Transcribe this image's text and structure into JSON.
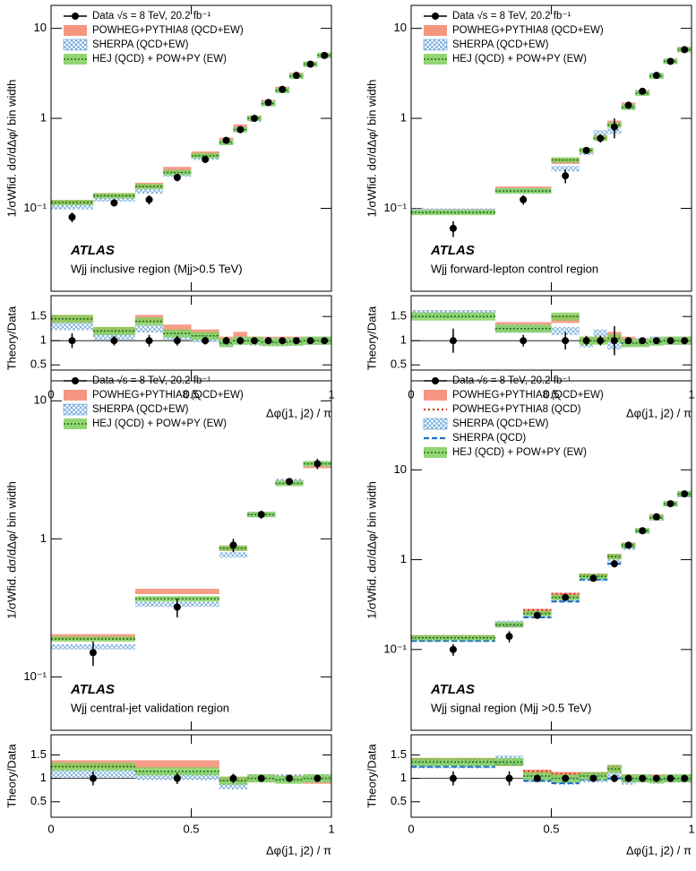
{
  "chart_data": [
    {
      "type": "histogram",
      "label": "ATLAS",
      "region": "Wjj inclusive region (Mjj>0.5 TeV)",
      "ylabel": "1/σWfid. dσ/dΔφ/ bin width",
      "ratio_ylabel": "Theory/Data",
      "xlabel": "Δφ(j1, j2) / π",
      "bins": [
        0,
        0.15,
        0.3,
        0.4,
        0.5,
        0.6,
        0.65,
        0.7,
        0.75,
        0.8,
        0.85,
        0.9,
        0.95,
        1
      ],
      "xlim": [
        0,
        1
      ],
      "xticks": [
        0,
        0.5,
        1
      ],
      "log_y": true,
      "ylim": [
        0.012,
        18
      ],
      "yticks": [
        {
          "value": 0.1,
          "label": "10⁻¹"
        },
        1,
        10
      ],
      "ratio": {
        "ylim": [
          0.17,
          1.93
        ],
        "yticks": [
          0.5,
          1,
          1.5
        ],
        "reference": 1
      },
      "series": [
        {
          "name": "Data √s = 8 TeV, 20.2 fb⁻¹",
          "style": "points",
          "color": "#000000",
          "values": [
            0.08,
            0.115,
            0.125,
            0.22,
            0.35,
            0.57,
            0.75,
            1.0,
            1.5,
            2.1,
            3.0,
            4.0,
            5.0
          ],
          "errors": [
            0.01,
            0.01,
            0.015,
            0.02,
            0.03,
            0.04,
            0.05,
            0.06,
            0.08,
            0.1,
            0.15,
            0.2,
            0.25
          ],
          "ratio_values": [
            1,
            1,
            1,
            1,
            1,
            1,
            1,
            1,
            1,
            1,
            1,
            1,
            1
          ],
          "ratio_errors": [
            0.15,
            0.1,
            0.12,
            0.1,
            0.08,
            0.08,
            0.08,
            0.06,
            0.05,
            0.05,
            0.05,
            0.05,
            0.05
          ]
        },
        {
          "name": "POWHEG+PYTHIA8 (QCD+EW)",
          "style": "band",
          "color": "#f4846a",
          "values": [
            0.116,
            0.138,
            0.18,
            0.27,
            0.4,
            0.57,
            0.8,
            1.0,
            1.5,
            2.1,
            3.0,
            4.0,
            5.0
          ],
          "ratio_values": [
            1.45,
            1.2,
            1.45,
            1.25,
            1.15,
            1.0,
            1.1,
            1.0,
            1.0,
            1.0,
            1.0,
            1.0,
            1.0
          ]
        },
        {
          "name": "SHERPA (QCD+EW)",
          "style": "hatch",
          "color": "#5b9bd5",
          "values": [
            0.104,
            0.127,
            0.156,
            0.24,
            0.37,
            0.54,
            0.75,
            0.98,
            1.47,
            2.04,
            2.94,
            4.0,
            5.0
          ],
          "ratio_values": [
            1.3,
            1.1,
            1.25,
            1.1,
            1.05,
            0.95,
            1.0,
            0.98,
            0.98,
            0.97,
            0.98,
            1.0,
            1.0
          ]
        },
        {
          "name": "HEJ (QCD) + POW+PY (EW)",
          "style": "band-dotted",
          "color": "#7fcf5a",
          "values": [
            0.116,
            0.138,
            0.175,
            0.25,
            0.385,
            0.54,
            0.75,
            1.0,
            1.46,
            2.04,
            2.94,
            4.0,
            5.0
          ],
          "ratio_values": [
            1.45,
            1.2,
            1.4,
            1.15,
            1.1,
            0.95,
            1.0,
            1.0,
            0.97,
            0.97,
            0.98,
            1.0,
            1.0
          ]
        }
      ]
    },
    {
      "type": "histogram",
      "label": "ATLAS",
      "region": "Wjj forward-lepton control region",
      "ylabel": "1/σWfid. dσ/dΔφ/ bin width",
      "ratio_ylabel": "Theory/Data",
      "xlabel": "Δφ(j1, j2) / π",
      "bins": [
        0,
        0.3,
        0.5,
        0.6,
        0.65,
        0.7,
        0.75,
        0.8,
        0.85,
        0.9,
        0.95,
        1
      ],
      "xlim": [
        0,
        1
      ],
      "xticks": [
        0,
        0.5,
        1
      ],
      "log_y": true,
      "ylim": [
        0.012,
        18
      ],
      "yticks": [
        {
          "value": 0.1,
          "label": "10⁻¹"
        },
        1,
        10
      ],
      "ratio": {
        "ylim": [
          0.17,
          1.93
        ],
        "yticks": [
          0.5,
          1,
          1.5
        ],
        "reference": 1
      },
      "series": [
        {
          "name": "Data √s = 8 TeV, 20.2 fb⁻¹",
          "style": "points",
          "color": "#000000",
          "values": [
            0.06,
            0.125,
            0.23,
            0.44,
            0.6,
            0.8,
            1.4,
            2.0,
            3.0,
            4.3,
            5.8
          ],
          "errors": [
            0.012,
            0.015,
            0.04,
            0.04,
            0.06,
            0.2,
            0.1,
            0.1,
            0.15,
            0.2,
            0.25
          ],
          "ratio_values": [
            1,
            1,
            1,
            1,
            1,
            1,
            1,
            1,
            1,
            1,
            1
          ],
          "ratio_errors": [
            0.25,
            0.12,
            0.18,
            0.1,
            0.1,
            0.3,
            0.07,
            0.06,
            0.05,
            0.05,
            0.05
          ]
        },
        {
          "name": "POWHEG+PYTHIA8 (QCD+EW)",
          "style": "band",
          "color": "#f4846a",
          "values": [
            0.093,
            0.163,
            0.334,
            0.44,
            0.63,
            0.88,
            1.4,
            1.94,
            3.0,
            4.3,
            5.8
          ],
          "ratio_values": [
            1.55,
            1.3,
            1.45,
            1.0,
            1.05,
            1.1,
            1.0,
            0.97,
            1.0,
            1.0,
            1.0
          ]
        },
        {
          "name": "SHERPA (QCD+EW)",
          "style": "hatch",
          "color": "#5b9bd5",
          "values": [
            0.093,
            0.156,
            0.276,
            0.418,
            0.69,
            0.72,
            1.33,
            1.94,
            3.0,
            4.3,
            5.8
          ],
          "ratio_values": [
            1.55,
            1.25,
            1.2,
            0.95,
            1.15,
            0.9,
            0.95,
            0.97,
            1.0,
            1.0,
            1.0
          ]
        },
        {
          "name": "HEJ (QCD) + POW+PY (EW)",
          "style": "band-dotted",
          "color": "#7fcf5a",
          "values": [
            0.09,
            0.156,
            0.345,
            0.44,
            0.6,
            0.84,
            1.33,
            1.9,
            2.94,
            4.3,
            5.8
          ],
          "ratio_values": [
            1.5,
            1.25,
            1.5,
            1.0,
            1.0,
            1.05,
            0.95,
            0.95,
            0.98,
            1.0,
            1.0
          ]
        }
      ]
    },
    {
      "type": "histogram",
      "label": "ATLAS",
      "region": "Wjj central-jet validation region",
      "ylabel": "1/σWfid. dσ/dΔφ/ bin width",
      "ratio_ylabel": "Theory/Data",
      "xlabel": "Δφ(j1, j2) / π",
      "bins": [
        0,
        0.3,
        0.6,
        0.7,
        0.8,
        0.9,
        1
      ],
      "xlim": [
        0,
        1
      ],
      "xticks": [
        0,
        0.5,
        1
      ],
      "log_y": true,
      "ylim": [
        0.041,
        16.7
      ],
      "yticks": [
        {
          "value": 0.1,
          "label": "10⁻¹"
        },
        1,
        10
      ],
      "ratio": {
        "ylim": [
          0.17,
          1.93
        ],
        "yticks": [
          0.5,
          1,
          1.5
        ],
        "reference": 1
      },
      "series": [
        {
          "name": "Data √s = 8 TeV, 20.2 fb⁻¹",
          "style": "points",
          "color": "#000000",
          "values": [
            0.15,
            0.32,
            0.9,
            1.5,
            2.6,
            3.5
          ],
          "errors": [
            0.03,
            0.05,
            0.1,
            0.1,
            0.15,
            0.3
          ],
          "ratio_values": [
            1,
            1,
            1,
            1,
            1,
            1
          ],
          "ratio_errors": [
            0.15,
            0.12,
            0.1,
            0.07,
            0.06,
            0.08
          ]
        },
        {
          "name": "POWHEG+PYTHIA8 (QCD+EW)",
          "style": "band",
          "color": "#f4846a",
          "values": [
            0.195,
            0.416,
            0.855,
            1.5,
            2.6,
            3.4
          ],
          "ratio_values": [
            1.3,
            1.3,
            0.95,
            1.0,
            1.0,
            0.97
          ]
        },
        {
          "name": "SHERPA (QCD+EW)",
          "style": "hatch",
          "color": "#5b9bd5",
          "values": [
            0.165,
            0.336,
            0.765,
            1.5,
            2.6,
            3.5
          ],
          "ratio_values": [
            1.1,
            1.05,
            0.85,
            1.0,
            1.0,
            1.0
          ]
        },
        {
          "name": "HEJ (QCD) + POW+PY (EW)",
          "style": "band-dotted",
          "color": "#7fcf5a",
          "values": [
            0.188,
            0.368,
            0.855,
            1.5,
            2.52,
            3.5
          ],
          "ratio_values": [
            1.25,
            1.15,
            0.95,
            1.0,
            0.97,
            1.0
          ]
        }
      ]
    },
    {
      "type": "histogram",
      "label": "ATLAS",
      "region": "Wjj signal region (Mjj >0.5 TeV)",
      "ylabel": "1/σWfid. dσ/dΔφ/ bin width",
      "ratio_ylabel": "Theory/Data",
      "xlabel": "Δφ(j1, j2) / π",
      "bins": [
        0,
        0.3,
        0.4,
        0.5,
        0.6,
        0.7,
        0.75,
        0.8,
        0.85,
        0.9,
        0.95,
        1
      ],
      "xlim": [
        0,
        1
      ],
      "xticks": [
        0,
        0.5,
        1
      ],
      "log_y": true,
      "ylim": [
        0.0126,
        129
      ],
      "yticks": [
        {
          "value": 0.1,
          "label": "10⁻¹"
        },
        1,
        10
      ],
      "ratio": {
        "ylim": [
          0.17,
          1.93
        ],
        "yticks": [
          0.5,
          1,
          1.5
        ],
        "reference": 1
      },
      "series": [
        {
          "name": "Data √s = 8 TeV, 20.2 fb⁻¹",
          "style": "points",
          "color": "#000000",
          "values": [
            0.1,
            0.14,
            0.24,
            0.38,
            0.62,
            0.9,
            1.45,
            2.1,
            3.0,
            4.2,
            5.4
          ],
          "errors": [
            0.015,
            0.02,
            0.02,
            0.03,
            0.05,
            0.08,
            0.08,
            0.1,
            0.12,
            0.2,
            0.25
          ],
          "ratio_values": [
            1,
            1,
            1,
            1,
            1,
            1,
            1,
            1,
            1,
            1,
            1
          ],
          "ratio_errors": [
            0.15,
            0.15,
            0.08,
            0.07,
            0.07,
            0.08,
            0.05,
            0.05,
            0.05,
            0.05,
            0.05
          ]
        },
        {
          "name": "POWHEG+PYTHIA8 (QCD+EW)",
          "style": "band",
          "color": "#f4846a",
          "values": [
            0.135,
            0.189,
            0.264,
            0.399,
            0.651,
            1.08,
            1.45,
            2.1,
            3.0,
            4.2,
            5.4
          ],
          "ratio_values": [
            1.35,
            1.35,
            1.1,
            1.05,
            1.05,
            1.2,
            1.0,
            1.0,
            1.0,
            1.0,
            1.0
          ]
        },
        {
          "name": "POWHEG+PYTHIA8 (QCD)",
          "style": "dotted",
          "color": "#e8291c",
          "values": [
            0.14,
            0.196,
            0.276,
            0.418,
            0.682,
            1.125,
            1.45,
            2.1,
            2.91,
            4.07,
            5.13
          ],
          "ratio_values": [
            1.4,
            1.4,
            1.15,
            1.1,
            1.1,
            1.25,
            1.0,
            1.0,
            0.97,
            0.97,
            0.95
          ]
        },
        {
          "name": "SHERPA (QCD+EW)",
          "style": "hatch",
          "color": "#5b9bd5",
          "values": [
            0.13,
            0.196,
            0.24,
            0.361,
            0.62,
            0.945,
            1.38,
            2.1,
            2.91,
            4.2,
            5.4
          ],
          "ratio_values": [
            1.3,
            1.4,
            1.0,
            0.95,
            1.0,
            1.05,
            0.95,
            1.0,
            0.97,
            1.0,
            1.0
          ]
        },
        {
          "name": "SHERPA (QCD)",
          "style": "dashed",
          "color": "#1f6fc4",
          "values": [
            0.125,
            0.182,
            0.228,
            0.342,
            0.601,
            0.9,
            1.38,
            2.04,
            2.91,
            4.07,
            5.13
          ],
          "ratio_values": [
            1.25,
            1.3,
            0.95,
            0.9,
            0.97,
            1.0,
            0.95,
            0.97,
            0.97,
            0.97,
            0.95
          ]
        },
        {
          "name": "HEJ (QCD) + POW+PY (EW)",
          "style": "band-dotted",
          "color": "#7fcf5a",
          "values": [
            0.135,
            0.189,
            0.252,
            0.38,
            0.651,
            1.08,
            1.45,
            2.1,
            2.94,
            4.2,
            5.4
          ],
          "ratio_values": [
            1.35,
            1.35,
            1.05,
            1.0,
            1.05,
            1.2,
            1.0,
            1.0,
            0.98,
            1.0,
            1.0
          ]
        }
      ]
    }
  ]
}
